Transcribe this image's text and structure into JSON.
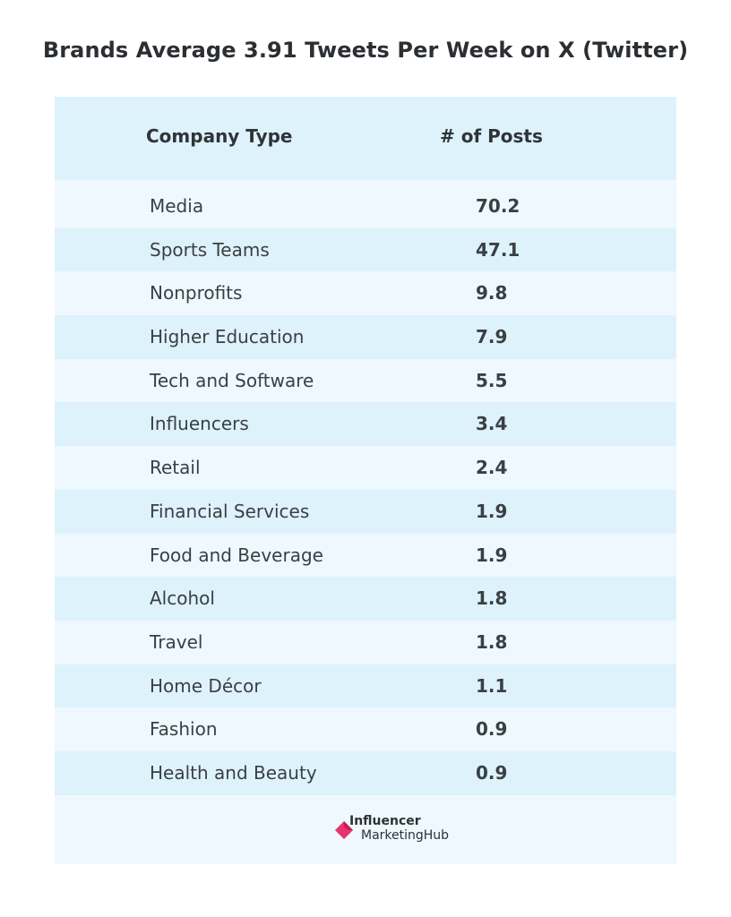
{
  "title": "Brands Average 3.91 Tweets Per Week on X (Twitter)",
  "chart_data": {
    "type": "table",
    "title": "Brands Average 3.91 Tweets Per Week on X (Twitter)",
    "columns": [
      "Company Type",
      "# of Posts"
    ],
    "rows": [
      {
        "label": "Media",
        "value": 70.2,
        "display": "70.2"
      },
      {
        "label": "Sports Teams",
        "value": 47.1,
        "display": "47.1"
      },
      {
        "label": "Nonprofits",
        "value": 9.8,
        "display": "9.8"
      },
      {
        "label": "Higher Education",
        "value": 7.9,
        "display": "7.9"
      },
      {
        "label": "Tech and Software",
        "value": 5.5,
        "display": "5.5"
      },
      {
        "label": "Influencers",
        "value": 3.4,
        "display": "3.4"
      },
      {
        "label": "Retail",
        "value": 2.4,
        "display": "2.4"
      },
      {
        "label": "Financial Services",
        "value": 1.9,
        "display": "1.9"
      },
      {
        "label": "Food and Beverage",
        "value": 1.9,
        "display": "1.9"
      },
      {
        "label": "Alcohol",
        "value": 1.8,
        "display": "1.8"
      },
      {
        "label": "Travel",
        "value": 1.8,
        "display": "1.8"
      },
      {
        "label": "Home Décor",
        "value": 1.1,
        "display": "1.1"
      },
      {
        "label": "Fashion",
        "value": 0.9,
        "display": "0.9"
      },
      {
        "label": "Health and Beauty",
        "value": 0.9,
        "display": "0.9"
      }
    ]
  },
  "logo": {
    "line1": "Influencer",
    "line2": "MarketingHub",
    "color": "#e8336d"
  }
}
